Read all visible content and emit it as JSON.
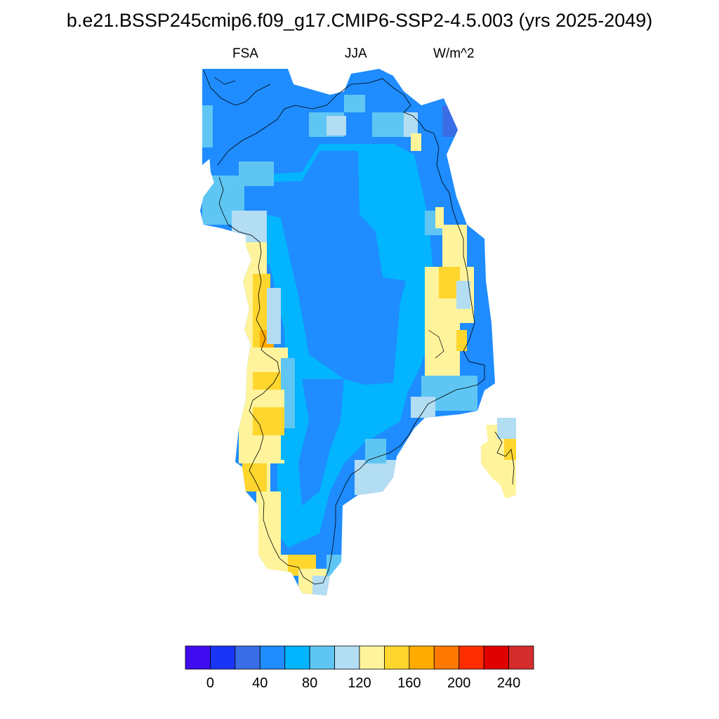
{
  "figure": {
    "title": "b.e21.BSSP245cmip6.f09_g17.CMIP6-SSP2-4.5.003 (yrs 2025-2049)",
    "variable": "FSA",
    "season": "JJA",
    "units": "W/m^2"
  },
  "map": {
    "region": "Greenland",
    "projection": "polar stereographic",
    "missing_color": "#ffffff",
    "coastline_color": "#000000"
  },
  "colorbar": {
    "levels": [
      -20,
      0,
      20,
      40,
      60,
      80,
      100,
      120,
      140,
      160,
      180,
      200,
      220,
      240,
      260
    ],
    "colors": [
      "#3f0cf0",
      "#1a35f5",
      "#3a6ee6",
      "#1f8cff",
      "#03b4ff",
      "#5fc6f3",
      "#b3ddf2",
      "#fff49c",
      "#ffd62e",
      "#ffab00",
      "#ff7800",
      "#ff2d00",
      "#e00000",
      "#d42c2c"
    ],
    "tick_labels": [
      "0",
      "40",
      "80",
      "120",
      "160",
      "200",
      "240"
    ]
  }
}
